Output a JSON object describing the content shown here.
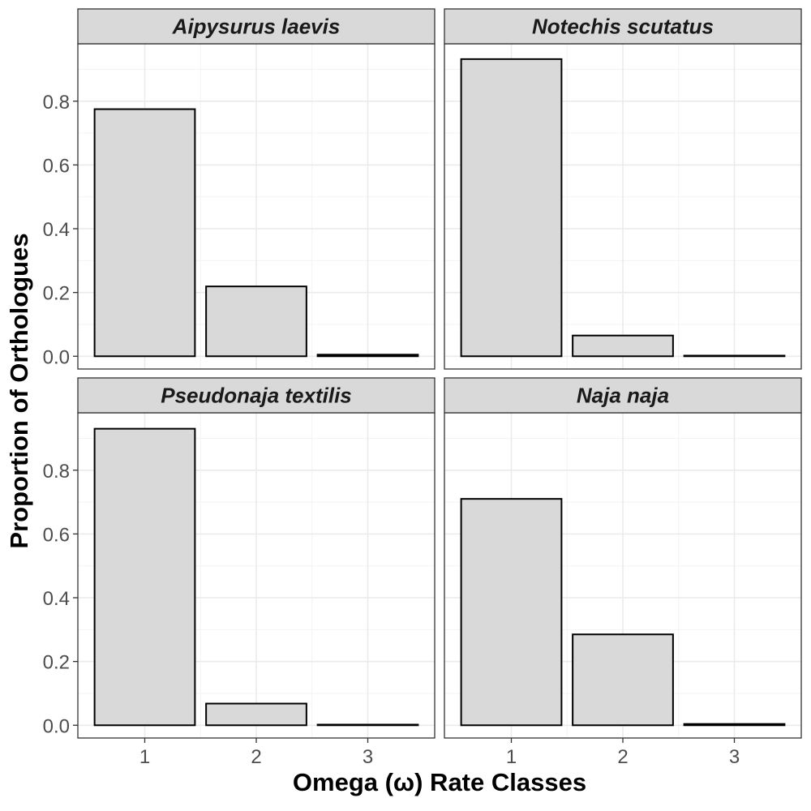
{
  "chart_data": {
    "type": "bar",
    "xlabel": "Omega (ω) Rate Classes",
    "ylabel": "Proportion of Orthologues",
    "categories": [
      "1",
      "2",
      "3"
    ],
    "ylim": [
      -0.04,
      0.98
    ],
    "yticks": [
      0.0,
      0.2,
      0.4,
      0.6,
      0.8
    ],
    "ytick_labels": [
      "0.0",
      "0.2",
      "0.4",
      "0.6",
      "0.8"
    ],
    "grid": true,
    "facets": [
      {
        "title": "Aipysurus laevis",
        "values": [
          0.775,
          0.219,
          0.005
        ]
      },
      {
        "title": "Notechis scutatus",
        "values": [
          0.932,
          0.065,
          0.002
        ]
      },
      {
        "title": "Pseudonaja textilis",
        "values": [
          0.93,
          0.068,
          0.002
        ]
      },
      {
        "title": "Naja naja",
        "values": [
          0.71,
          0.285,
          0.004
        ]
      }
    ],
    "colors": {
      "bar_fill": "#d9d9d9",
      "bar_stroke": "#000000",
      "strip_fill": "#d9d9d9",
      "grid_major": "#ebebeb",
      "grid_minor": "#f3f3f3",
      "panel_border": "#333333"
    }
  }
}
